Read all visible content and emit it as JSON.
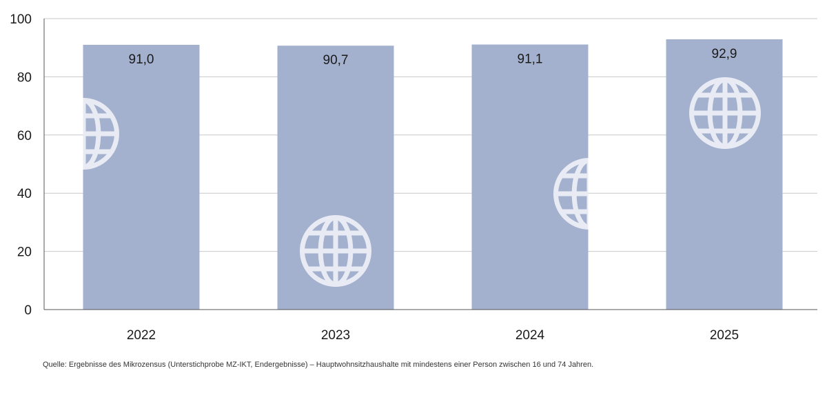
{
  "chart_data": {
    "type": "bar",
    "categories": [
      "2022",
      "2023",
      "2024",
      "2025"
    ],
    "values": [
      91.0,
      90.7,
      91.1,
      92.9
    ],
    "data_labels": [
      "91,0",
      "90,7",
      "91,1",
      "92,9"
    ],
    "ylim": [
      0,
      100
    ],
    "yticks": [
      0,
      20,
      40,
      60,
      80,
      100
    ],
    "grid": true,
    "legend": "none",
    "bar_color": "#a3b1cf",
    "grid_color": "#c8c8c8",
    "axis_color": "#555555",
    "icon_color": "#e8ebf3",
    "decoration_icon": "globe-icon"
  },
  "source_note": "Quelle: Ergebnisse des Mikrozensus (Unterstichprobe MZ-IKT, Endergebnisse) – Hauptwohnsitzhaushalte mit mindestens einer Person zwischen 16 und 74 Jahren."
}
